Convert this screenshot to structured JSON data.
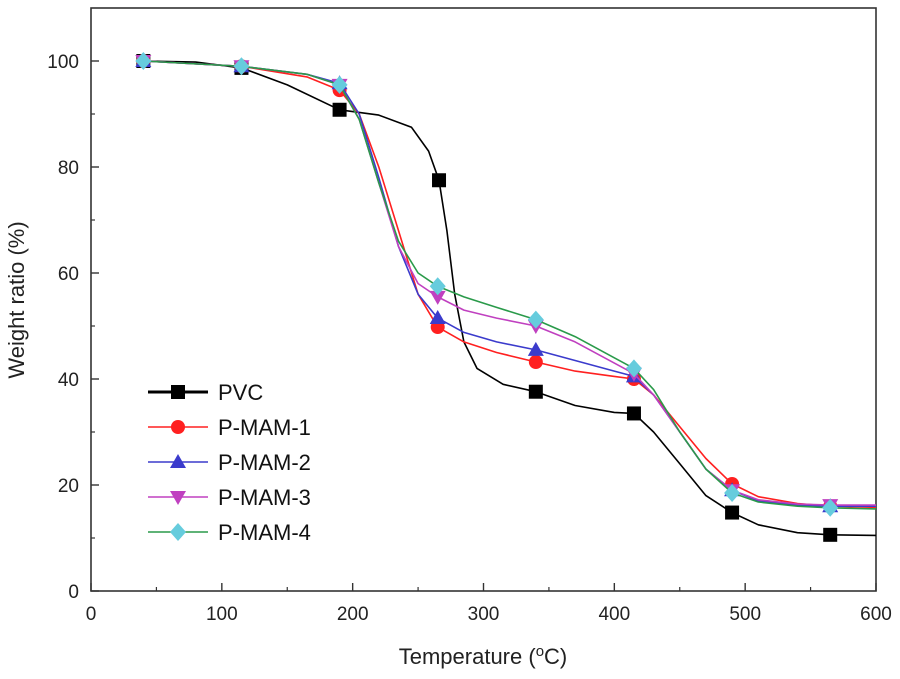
{
  "chart_data": {
    "type": "line",
    "xlabel": "Temperature (",
    "xlabel_unit_sup": "o",
    "xlabel_unit": "C)",
    "ylabel": "Weight ratio (%)",
    "xlim": [
      0,
      600
    ],
    "ylim": [
      0,
      110
    ],
    "xticks": [
      0,
      100,
      200,
      300,
      400,
      500,
      600
    ],
    "yticks": [
      0,
      20,
      40,
      60,
      80,
      100
    ],
    "x_tick_labels": [
      "0",
      "100",
      "200",
      "300",
      "400",
      "500",
      "600"
    ],
    "y_tick_labels": [
      "0",
      "20",
      "40",
      "60",
      "80",
      "100"
    ],
    "legend_position": "bottom-left",
    "series": [
      {
        "name": "PVC",
        "color": "#000000",
        "marker": "square",
        "curve": [
          [
            40,
            100
          ],
          [
            80,
            99.8
          ],
          [
            115,
            98.7
          ],
          [
            150,
            95.5
          ],
          [
            190,
            90.8
          ],
          [
            220,
            89.8
          ],
          [
            245,
            87.5
          ],
          [
            258,
            83
          ],
          [
            266,
            77.5
          ],
          [
            272,
            68
          ],
          [
            278,
            56
          ],
          [
            285,
            47
          ],
          [
            295,
            42
          ],
          [
            315,
            39
          ],
          [
            340,
            37.6
          ],
          [
            370,
            35
          ],
          [
            400,
            33.7
          ],
          [
            415,
            33.5
          ],
          [
            430,
            30
          ],
          [
            450,
            24
          ],
          [
            470,
            18
          ],
          [
            490,
            14.8
          ],
          [
            510,
            12.5
          ],
          [
            540,
            11
          ],
          [
            565,
            10.6
          ],
          [
            600,
            10.5
          ]
        ],
        "markers": [
          [
            40,
            100
          ],
          [
            115,
            98.7
          ],
          [
            190,
            90.8
          ],
          [
            266,
            77.5
          ],
          [
            340,
            37.6
          ],
          [
            415,
            33.5
          ],
          [
            490,
            14.8
          ],
          [
            565,
            10.6
          ]
        ]
      },
      {
        "name": "P-MAM-1",
        "color": "#ff2020",
        "marker": "circle",
        "curve": [
          [
            40,
            100
          ],
          [
            115,
            99
          ],
          [
            165,
            97
          ],
          [
            190,
            94.5
          ],
          [
            205,
            90
          ],
          [
            220,
            80
          ],
          [
            235,
            68
          ],
          [
            250,
            56
          ],
          [
            265,
            49.8
          ],
          [
            285,
            47
          ],
          [
            310,
            45
          ],
          [
            340,
            43.2
          ],
          [
            370,
            41.5
          ],
          [
            400,
            40.5
          ],
          [
            415,
            40
          ],
          [
            430,
            37
          ],
          [
            450,
            31
          ],
          [
            470,
            25
          ],
          [
            490,
            20.2
          ],
          [
            510,
            17.8
          ],
          [
            540,
            16.5
          ],
          [
            565,
            16
          ],
          [
            600,
            15.8
          ]
        ],
        "markers": [
          [
            40,
            100
          ],
          [
            115,
            99
          ],
          [
            190,
            94.5
          ],
          [
            265,
            49.8
          ],
          [
            340,
            43.2
          ],
          [
            415,
            40
          ],
          [
            490,
            20.2
          ],
          [
            565,
            16
          ]
        ]
      },
      {
        "name": "P-MAM-2",
        "color": "#3b3bcc",
        "marker": "triangle-up",
        "curve": [
          [
            40,
            100
          ],
          [
            115,
            99
          ],
          [
            165,
            97.5
          ],
          [
            190,
            95.8
          ],
          [
            205,
            90
          ],
          [
            220,
            78
          ],
          [
            235,
            65
          ],
          [
            250,
            56
          ],
          [
            265,
            51.5
          ],
          [
            285,
            48.8
          ],
          [
            310,
            47
          ],
          [
            340,
            45.5
          ],
          [
            370,
            43.5
          ],
          [
            400,
            41.5
          ],
          [
            415,
            40.5
          ],
          [
            430,
            37
          ],
          [
            450,
            30
          ],
          [
            470,
            23
          ],
          [
            490,
            19
          ],
          [
            510,
            17
          ],
          [
            540,
            16.2
          ],
          [
            565,
            16
          ],
          [
            600,
            16
          ]
        ],
        "markers": [
          [
            40,
            100
          ],
          [
            115,
            99
          ],
          [
            190,
            95.8
          ],
          [
            265,
            51.5
          ],
          [
            340,
            45.5
          ],
          [
            415,
            40.5
          ],
          [
            490,
            19
          ],
          [
            565,
            16
          ]
        ]
      },
      {
        "name": "P-MAM-3",
        "color": "#c040c0",
        "marker": "triangle-down",
        "curve": [
          [
            40,
            100
          ],
          [
            115,
            99
          ],
          [
            165,
            97.5
          ],
          [
            190,
            95.5
          ],
          [
            205,
            89
          ],
          [
            220,
            77
          ],
          [
            235,
            65
          ],
          [
            250,
            58
          ],
          [
            265,
            55.5
          ],
          [
            285,
            53
          ],
          [
            310,
            51.5
          ],
          [
            340,
            50
          ],
          [
            370,
            47
          ],
          [
            400,
            43
          ],
          [
            415,
            41
          ],
          [
            430,
            37
          ],
          [
            450,
            30
          ],
          [
            470,
            23
          ],
          [
            490,
            19
          ],
          [
            510,
            17.2
          ],
          [
            540,
            16.4
          ],
          [
            565,
            16.2
          ],
          [
            600,
            16.2
          ]
        ],
        "markers": [
          [
            40,
            100
          ],
          [
            115,
            99
          ],
          [
            190,
            95.5
          ],
          [
            265,
            55.5
          ],
          [
            340,
            50
          ],
          [
            415,
            41
          ],
          [
            490,
            19
          ],
          [
            565,
            16.2
          ]
        ]
      },
      {
        "name": "P-MAM-4",
        "color": "#2a9a4a",
        "marker": "diamond",
        "marker_color": "#66ccdd",
        "curve": [
          [
            40,
            100
          ],
          [
            115,
            99
          ],
          [
            165,
            97.5
          ],
          [
            190,
            95.5
          ],
          [
            205,
            89
          ],
          [
            220,
            77
          ],
          [
            235,
            66
          ],
          [
            250,
            60
          ],
          [
            265,
            57.5
          ],
          [
            285,
            55.5
          ],
          [
            310,
            53.5
          ],
          [
            340,
            51.2
          ],
          [
            370,
            48
          ],
          [
            400,
            44
          ],
          [
            415,
            42
          ],
          [
            430,
            38
          ],
          [
            450,
            30
          ],
          [
            470,
            23
          ],
          [
            490,
            18.5
          ],
          [
            510,
            16.8
          ],
          [
            540,
            16
          ],
          [
            565,
            15.7
          ],
          [
            600,
            15.5
          ]
        ],
        "markers": [
          [
            40,
            100
          ],
          [
            115,
            99
          ],
          [
            190,
            95.5
          ],
          [
            265,
            57.5
          ],
          [
            340,
            51.2
          ],
          [
            415,
            42
          ],
          [
            490,
            18.5
          ],
          [
            565,
            15.7
          ]
        ]
      }
    ]
  }
}
